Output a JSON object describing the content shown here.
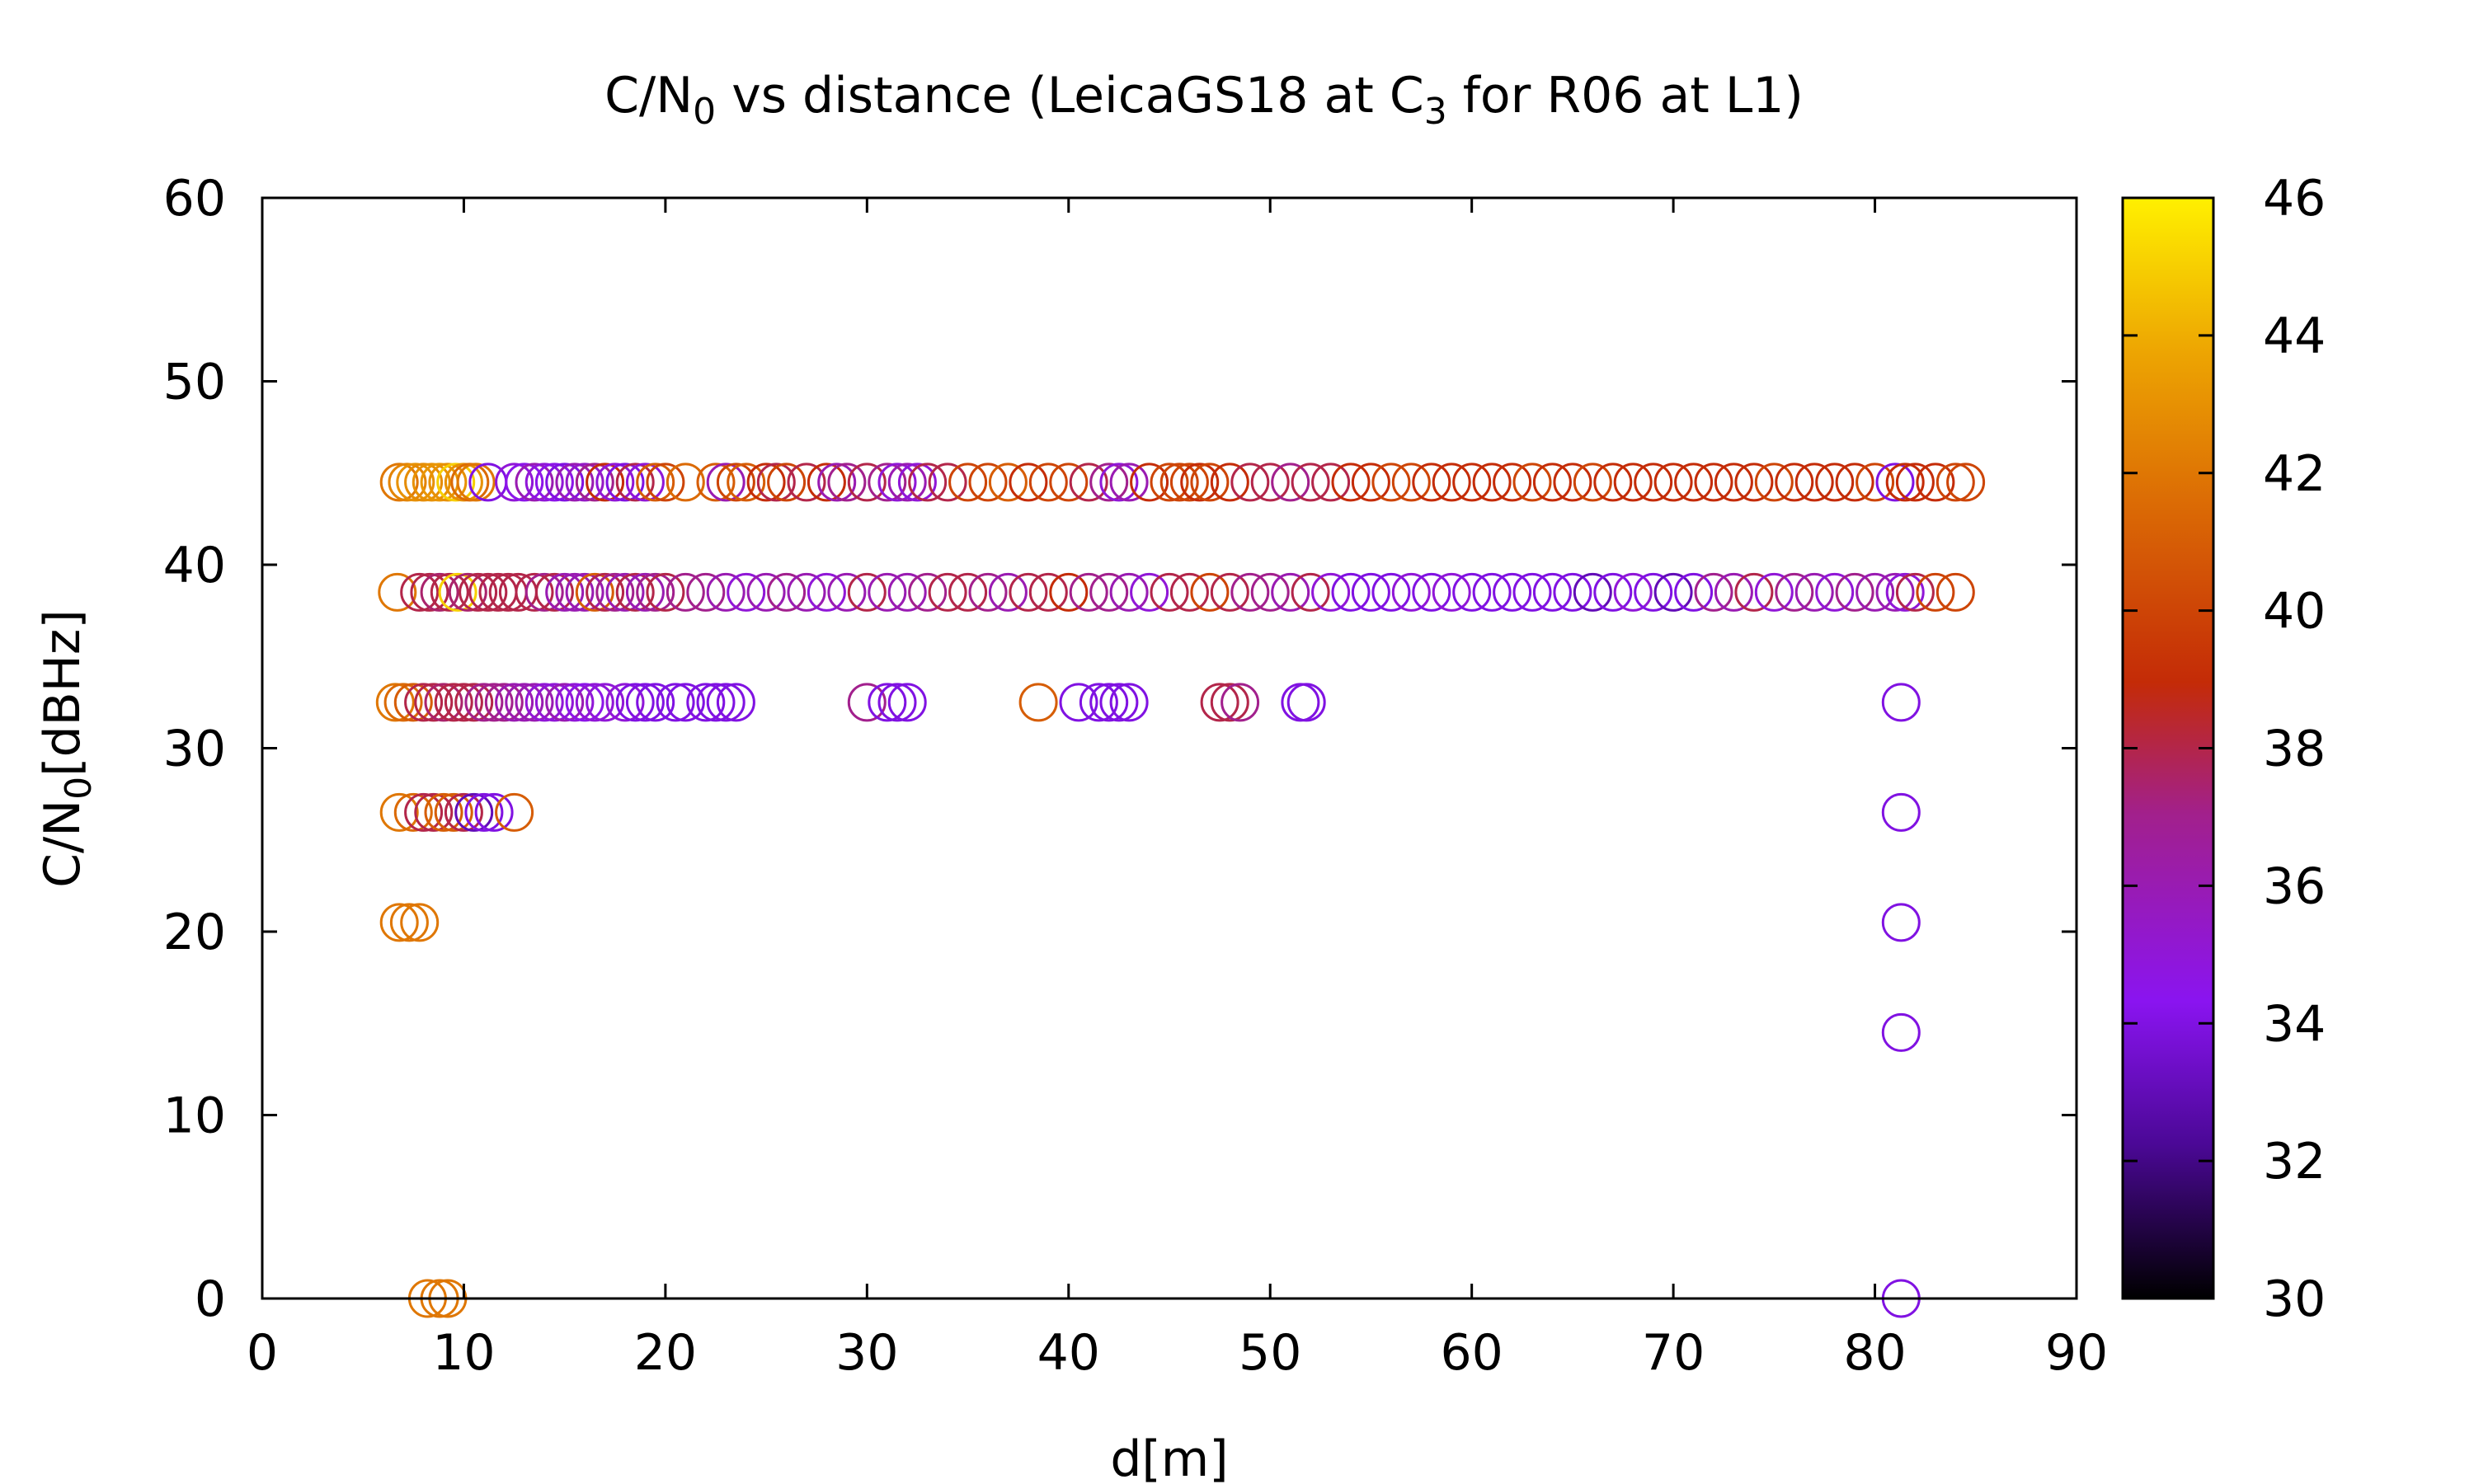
{
  "chart_data": {
    "type": "scatter",
    "title": {
      "main": "C/N",
      "sub0": "0",
      "mid": " vs distance (LeicaGS18 at C",
      "sub3": "3",
      "end": " for R06 at L1)"
    },
    "xlabel": "d[m]",
    "ylabel": {
      "main": "C/N",
      "sub": "0",
      "end": "[dBHz]"
    },
    "xlim": [
      0,
      90
    ],
    "ylim": [
      0,
      60
    ],
    "xticks": [
      "0",
      "10",
      "20",
      "30",
      "40",
      "50",
      "60",
      "70",
      "80",
      "90"
    ],
    "yticks": [
      "0",
      "10",
      "20",
      "30",
      "40",
      "50",
      "60"
    ],
    "colorbar": {
      "range": [
        30,
        46
      ],
      "ticks": [
        "30",
        "32",
        "34",
        "36",
        "38",
        "40",
        "42",
        "44",
        "46"
      ],
      "palette": [
        "#000000",
        "#4b0896",
        "#8a14f0",
        "#a2208c",
        "#c42b07",
        "#db6a05",
        "#eda502",
        "#fff000"
      ]
    },
    "marker": "open-circle",
    "series": [
      {
        "level": 44.5,
        "points": [
          [
            6.8,
            42
          ],
          [
            7.2,
            42.5
          ],
          [
            7.6,
            43
          ],
          [
            8,
            42.8
          ],
          [
            8.4,
            43
          ],
          [
            8.8,
            43.2
          ],
          [
            9.2,
            43
          ],
          [
            9.6,
            45
          ],
          [
            10,
            43
          ],
          [
            10.3,
            41.5
          ],
          [
            10.6,
            42
          ],
          [
            11.2,
            34
          ],
          [
            12.5,
            35
          ],
          [
            13,
            34.5
          ],
          [
            13.5,
            36
          ],
          [
            14,
            35
          ],
          [
            14.5,
            34.5
          ],
          [
            15,
            34
          ],
          [
            15.5,
            36
          ],
          [
            16,
            35.5
          ],
          [
            16.5,
            37
          ],
          [
            17,
            39
          ],
          [
            17.5,
            35
          ],
          [
            18,
            34
          ],
          [
            18.5,
            38
          ],
          [
            19,
            35
          ],
          [
            19.5,
            41
          ],
          [
            20,
            40
          ],
          [
            21,
            41.5
          ],
          [
            22.5,
            41
          ],
          [
            23,
            36
          ],
          [
            23.5,
            40
          ],
          [
            24,
            41
          ],
          [
            25,
            39
          ],
          [
            25.5,
            38
          ],
          [
            26,
            40
          ],
          [
            27,
            38
          ],
          [
            28,
            39
          ],
          [
            28.5,
            36
          ],
          [
            29,
            37
          ],
          [
            30,
            38
          ],
          [
            31,
            37
          ],
          [
            31.5,
            35
          ],
          [
            32,
            36
          ],
          [
            32.5,
            35
          ],
          [
            33,
            38
          ],
          [
            34,
            38
          ],
          [
            35,
            40
          ],
          [
            36,
            40
          ],
          [
            37,
            41
          ],
          [
            38,
            39
          ],
          [
            39,
            40
          ],
          [
            40,
            40
          ],
          [
            41,
            38
          ],
          [
            42,
            37
          ],
          [
            42.5,
            35
          ],
          [
            43,
            36
          ],
          [
            44,
            39
          ],
          [
            45,
            40
          ],
          [
            45.5,
            40
          ],
          [
            46,
            40
          ],
          [
            46.5,
            39
          ],
          [
            47,
            40
          ],
          [
            48,
            39
          ],
          [
            49,
            38
          ],
          [
            50,
            38
          ],
          [
            51,
            37
          ],
          [
            52,
            38
          ],
          [
            53,
            38
          ],
          [
            54,
            39
          ],
          [
            55,
            39
          ],
          [
            56,
            40
          ],
          [
            57,
            40
          ],
          [
            58,
            39
          ],
          [
            59,
            39
          ],
          [
            60,
            39
          ],
          [
            61,
            39
          ],
          [
            62,
            39
          ],
          [
            63,
            40
          ],
          [
            64,
            39
          ],
          [
            65,
            39
          ],
          [
            66,
            40
          ],
          [
            67,
            39
          ],
          [
            68,
            39
          ],
          [
            69,
            39
          ],
          [
            70,
            39
          ],
          [
            71,
            39
          ],
          [
            72,
            39
          ],
          [
            73,
            39
          ],
          [
            74,
            39
          ],
          [
            75,
            40
          ],
          [
            76,
            39
          ],
          [
            77,
            39
          ],
          [
            78,
            39
          ],
          [
            79,
            39
          ],
          [
            80,
            40
          ],
          [
            81,
            34
          ],
          [
            81.5,
            39
          ],
          [
            82,
            39
          ],
          [
            83,
            39
          ],
          [
            84,
            40
          ],
          [
            84.5,
            40
          ]
        ]
      },
      {
        "level": 38.5,
        "points": [
          [
            6.7,
            42
          ],
          [
            7.8,
            38
          ],
          [
            8.3,
            38
          ],
          [
            8.8,
            37.5
          ],
          [
            9.3,
            38
          ],
          [
            9.7,
            45
          ],
          [
            10.2,
            37.5
          ],
          [
            10.7,
            38
          ],
          [
            11.2,
            38
          ],
          [
            11.7,
            38
          ],
          [
            12.2,
            38
          ],
          [
            12.7,
            38
          ],
          [
            13.5,
            38
          ],
          [
            14,
            37
          ],
          [
            14.5,
            38
          ],
          [
            15,
            36
          ],
          [
            15.5,
            36
          ],
          [
            16,
            36
          ],
          [
            16.5,
            41
          ],
          [
            17,
            38
          ],
          [
            17.5,
            37
          ],
          [
            18,
            36
          ],
          [
            18.5,
            38
          ],
          [
            19,
            36
          ],
          [
            19.5,
            37
          ],
          [
            20,
            38
          ],
          [
            21,
            37
          ],
          [
            22,
            37
          ],
          [
            23,
            36
          ],
          [
            24,
            35
          ],
          [
            25,
            36
          ],
          [
            26,
            37
          ],
          [
            27,
            36
          ],
          [
            28,
            35
          ],
          [
            29,
            36
          ],
          [
            30,
            38
          ],
          [
            31,
            36
          ],
          [
            32,
            36
          ],
          [
            33,
            37
          ],
          [
            34,
            38
          ],
          [
            35,
            38
          ],
          [
            36,
            37
          ],
          [
            37,
            36
          ],
          [
            38,
            38
          ],
          [
            39,
            38
          ],
          [
            40,
            39
          ],
          [
            41,
            37
          ],
          [
            42,
            37
          ],
          [
            43,
            36
          ],
          [
            44,
            35
          ],
          [
            45,
            38
          ],
          [
            46,
            38
          ],
          [
            47,
            40
          ],
          [
            48,
            38
          ],
          [
            49,
            37
          ],
          [
            50,
            37
          ],
          [
            51,
            36
          ],
          [
            52,
            38
          ],
          [
            53,
            35
          ],
          [
            54,
            34
          ],
          [
            55,
            34
          ],
          [
            56,
            34
          ],
          [
            57,
            35
          ],
          [
            58,
            34
          ],
          [
            59,
            35
          ],
          [
            60,
            34
          ],
          [
            61,
            34
          ],
          [
            62,
            34
          ],
          [
            63,
            34
          ],
          [
            64,
            34
          ],
          [
            65,
            34
          ],
          [
            66,
            33
          ],
          [
            67,
            34
          ],
          [
            68,
            35
          ],
          [
            69,
            34
          ],
          [
            70,
            33
          ],
          [
            71,
            34
          ],
          [
            72,
            37
          ],
          [
            73,
            36
          ],
          [
            74,
            38
          ],
          [
            75,
            35
          ],
          [
            76,
            37
          ],
          [
            77,
            36
          ],
          [
            78,
            35
          ],
          [
            79,
            37
          ],
          [
            80,
            36
          ],
          [
            81,
            36
          ],
          [
            81.5,
            35
          ],
          [
            82,
            38
          ],
          [
            83,
            40
          ],
          [
            84,
            40
          ]
        ]
      },
      {
        "level": 32.5,
        "points": [
          [
            6.6,
            42
          ],
          [
            7,
            41.5
          ],
          [
            7.5,
            41
          ],
          [
            8,
            38
          ],
          [
            8.5,
            38
          ],
          [
            9,
            37.5
          ],
          [
            9.5,
            38
          ],
          [
            10,
            38
          ],
          [
            10.5,
            38
          ],
          [
            11,
            37
          ],
          [
            11.5,
            37
          ],
          [
            12,
            37
          ],
          [
            12.5,
            36
          ],
          [
            13,
            36
          ],
          [
            13.5,
            36
          ],
          [
            14,
            35
          ],
          [
            14.5,
            35
          ],
          [
            15,
            36
          ],
          [
            15.5,
            35
          ],
          [
            16,
            34.5
          ],
          [
            16.5,
            35
          ],
          [
            17,
            35
          ],
          [
            18,
            35
          ],
          [
            18.5,
            34
          ],
          [
            19,
            34
          ],
          [
            19.5,
            34
          ],
          [
            20.5,
            34
          ],
          [
            21,
            34
          ],
          [
            22,
            34
          ],
          [
            22.5,
            34
          ],
          [
            23,
            34
          ],
          [
            23.5,
            34
          ],
          [
            30,
            37
          ],
          [
            31,
            34
          ],
          [
            31.5,
            34
          ],
          [
            32,
            34
          ],
          [
            38.5,
            41
          ],
          [
            40.5,
            34
          ],
          [
            41.5,
            34
          ],
          [
            42,
            34
          ],
          [
            42.5,
            34
          ],
          [
            43,
            34
          ],
          [
            47.5,
            38
          ],
          [
            48,
            38
          ],
          [
            48.5,
            37
          ],
          [
            51.5,
            34
          ],
          [
            51.8,
            34
          ],
          [
            81.3,
            34
          ]
        ]
      },
      {
        "level": 26.5,
        "points": [
          [
            6.8,
            42
          ],
          [
            7.5,
            41.5
          ],
          [
            8,
            38
          ],
          [
            8.5,
            38
          ],
          [
            9,
            41
          ],
          [
            9.5,
            41
          ],
          [
            10,
            38
          ],
          [
            10.5,
            33
          ],
          [
            11,
            34
          ],
          [
            11.5,
            34
          ],
          [
            12.5,
            41
          ],
          [
            81.3,
            34
          ]
        ]
      },
      {
        "level": 20.5,
        "points": [
          [
            6.8,
            42
          ],
          [
            7.3,
            42
          ],
          [
            7.8,
            42
          ],
          [
            81.3,
            34
          ]
        ]
      },
      {
        "level": 14.5,
        "points": [
          [
            81.3,
            34
          ]
        ]
      },
      {
        "level": 0,
        "points": [
          [
            8.2,
            42
          ],
          [
            8.8,
            42
          ],
          [
            9.2,
            42
          ],
          [
            81.3,
            34
          ]
        ]
      }
    ]
  }
}
